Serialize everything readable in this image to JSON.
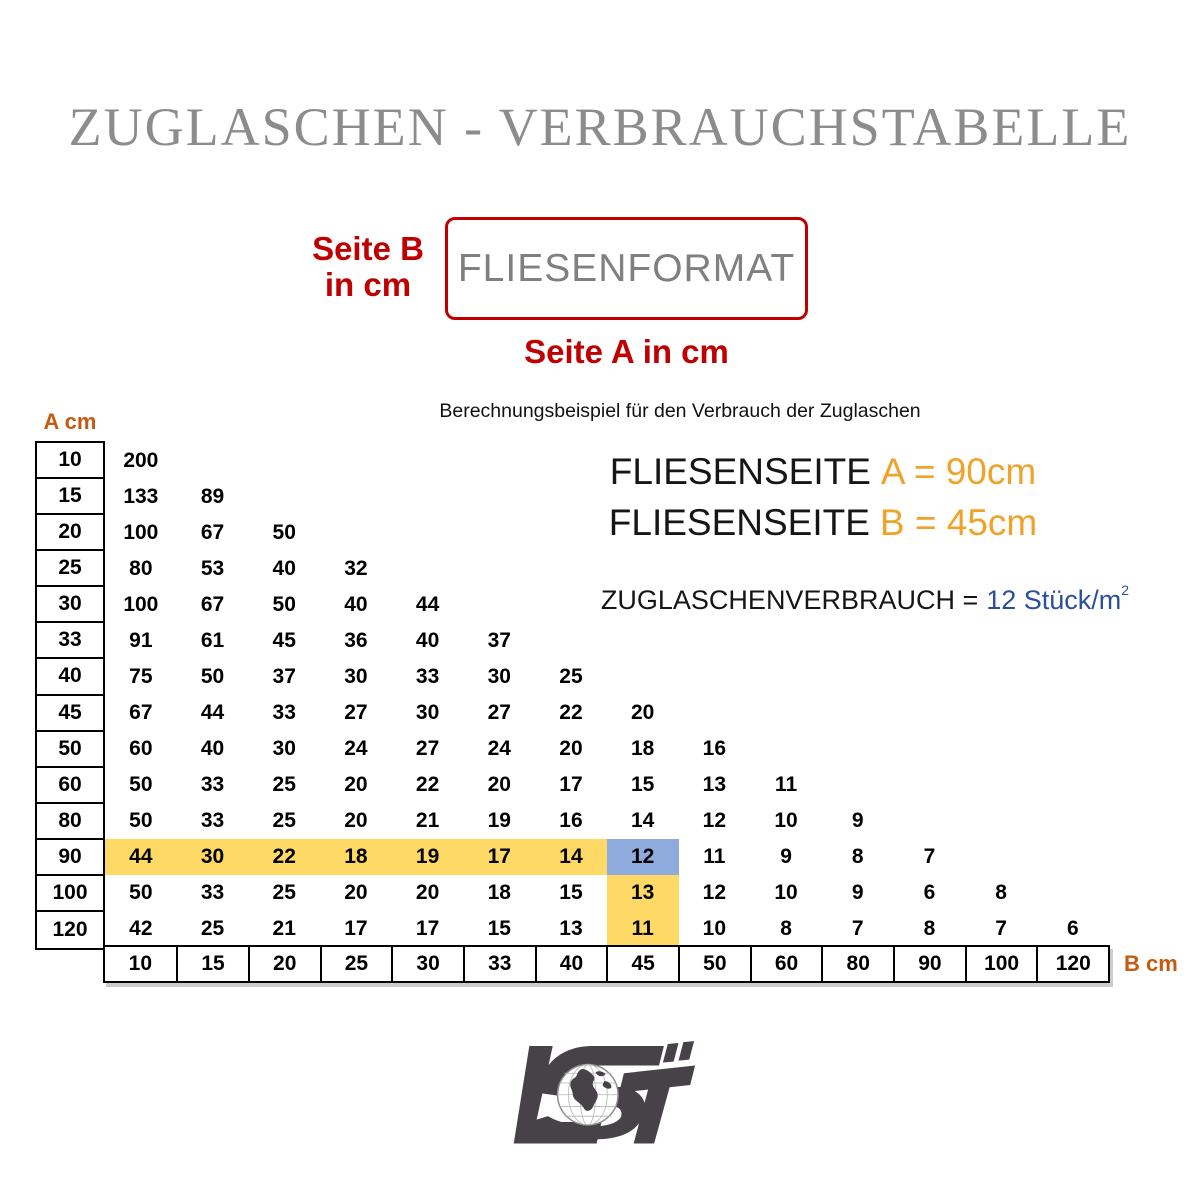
{
  "title": "ZUGLASCHEN - VERBRAUCHSTABELLE",
  "format_diagram": {
    "side_b_line1": "Seite B",
    "side_b_line2": "in cm",
    "box_label": "FLIESENFORMAT",
    "side_a_label": "Seite A in cm"
  },
  "example": {
    "intro": "Berechnungsbeispiel für den Verbrauch der Zuglaschen",
    "tile_side_label": "FLIESENSEITE",
    "side_a_value": "A = 90cm",
    "side_b_value": "B = 45cm",
    "consumption_label": "ZUGLASCHENVERBRAUCH =",
    "consumption_value": "12 Stück/m",
    "consumption_exponent": "2"
  },
  "chart_data": {
    "type": "table",
    "title": "ZUGLASCHEN - VERBRAUCHSTABELLE",
    "row_axis_label": "A cm",
    "col_axis_label": "B cm",
    "row_values": [
      10,
      15,
      20,
      25,
      30,
      33,
      40,
      45,
      50,
      60,
      80,
      90,
      100,
      120
    ],
    "col_values": [
      10,
      15,
      20,
      25,
      30,
      33,
      40,
      45,
      50,
      60,
      80,
      90,
      100,
      120
    ],
    "rows": [
      [
        200
      ],
      [
        133,
        89
      ],
      [
        100,
        67,
        50
      ],
      [
        80,
        53,
        40,
        32
      ],
      [
        100,
        67,
        50,
        40,
        44
      ],
      [
        91,
        61,
        45,
        36,
        40,
        37
      ],
      [
        75,
        50,
        37,
        30,
        33,
        30,
        25
      ],
      [
        67,
        44,
        33,
        27,
        30,
        27,
        22,
        20
      ],
      [
        60,
        40,
        30,
        24,
        27,
        24,
        20,
        18,
        16
      ],
      [
        50,
        33,
        25,
        20,
        22,
        20,
        17,
        15,
        13,
        11
      ],
      [
        50,
        33,
        25,
        20,
        21,
        19,
        16,
        14,
        12,
        10,
        9
      ],
      [
        44,
        30,
        22,
        18,
        19,
        17,
        14,
        12,
        11,
        9,
        8,
        7
      ],
      [
        50,
        33,
        25,
        20,
        20,
        18,
        15,
        13,
        12,
        10,
        9,
        6,
        8
      ],
      [
        42,
        25,
        21,
        17,
        17,
        15,
        13,
        11,
        10,
        8,
        7,
        8,
        7,
        6
      ]
    ],
    "highlight": {
      "example_row": 90,
      "example_col": 45,
      "example_value": 12,
      "row_band_color": "#ffd966",
      "col_band_color": "#ffd966",
      "intersection_color": "#8faadc"
    },
    "grid": "only row/column header cells have borders; data area has no gridlines",
    "legend_position": "none"
  },
  "colors": {
    "red": "#c00000",
    "orange_accent": "#efa32a",
    "axis_label_orange": "#c55a11",
    "blue_text": "#2b4f9e",
    "title_gray": "#8c8c8c",
    "box_text_gray": "#808080",
    "logo_gray": "#474247"
  }
}
